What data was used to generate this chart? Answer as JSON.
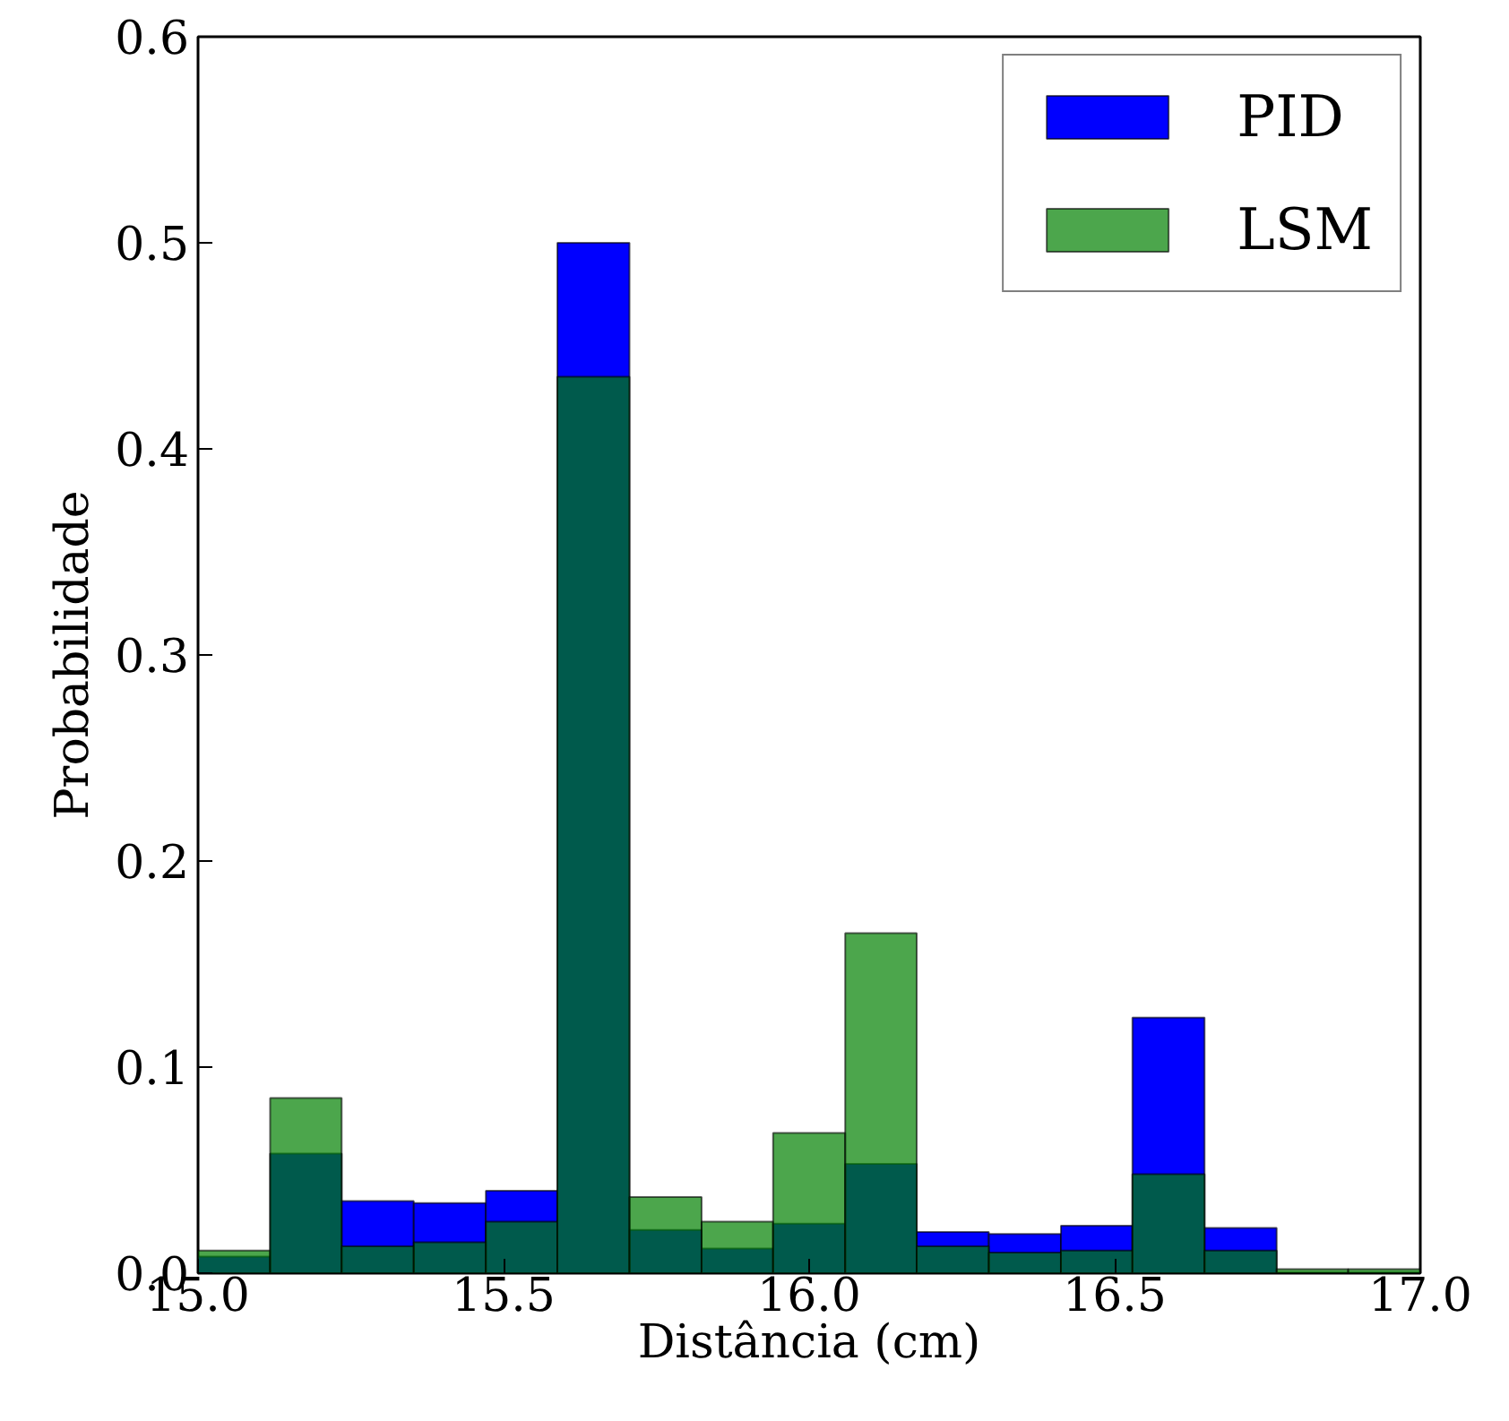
{
  "chart_data": {
    "type": "histogram",
    "xlabel": "Distância (cm)",
    "ylabel": "Probabilidade",
    "bins": [
      15.0,
      15.118,
      15.235,
      15.353,
      15.471,
      15.588,
      15.706,
      15.824,
      15.941,
      16.059,
      16.176,
      16.294,
      16.412,
      16.529,
      16.647,
      16.765,
      16.882,
      17.0
    ],
    "series": [
      {
        "name": "PID",
        "color": "#0000ff",
        "values": [
          0.008,
          0.058,
          0.035,
          0.034,
          0.04,
          0.5,
          0.021,
          0.012,
          0.024,
          0.053,
          0.02,
          0.019,
          0.023,
          0.124,
          0.022,
          null,
          null
        ]
      },
      {
        "name": "LSM",
        "color": "#008000",
        "values": [
          0.011,
          0.085,
          0.013,
          0.015,
          0.025,
          0.435,
          0.037,
          0.025,
          0.068,
          0.165,
          0.013,
          0.01,
          0.011,
          0.048,
          0.011,
          0.002,
          0.002
        ]
      }
    ],
    "xlim": [
      15.0,
      17.0
    ],
    "ylim": [
      0,
      0.6
    ],
    "xticks": [
      {
        "value": 15.0,
        "label": "15.0"
      },
      15.5,
      {
        "value": 16.0,
        "label": "16.0"
      },
      16.5,
      {
        "value": 17.0,
        "label": "17.0"
      }
    ],
    "yticks": [
      {
        "value": 0,
        "label": "0.0"
      },
      0.1,
      0.2,
      0.3,
      0.4,
      0.5,
      0.6
    ],
    "legend": "top right",
    "grid": false
  }
}
